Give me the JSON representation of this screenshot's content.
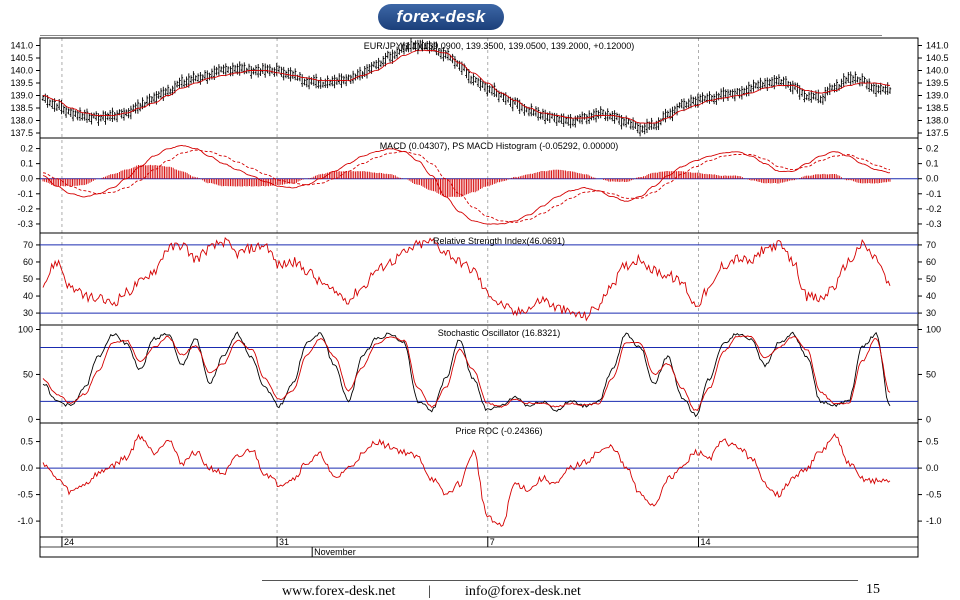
{
  "logo": {
    "text": "forex-desk"
  },
  "footer": {
    "website": "www.forex-desk.net",
    "separator": "|",
    "email": "info@forex-desk.net",
    "page_number": "15"
  },
  "colors": {
    "series": "#d40000",
    "signal": "#000000",
    "reference_line": "#1a2bb0",
    "grid": "#999999"
  },
  "chart_data": [
    {
      "type": "line",
      "title": "EUR/JPY(1:1)(139.0900, 139.3500, 139.0500, 139.2000, +0.12000)",
      "ylim": [
        137.3,
        141.3
      ],
      "yticks": [
        "141.0",
        "140.5",
        "140.0",
        "139.5",
        "139.0",
        "138.5",
        "138.0",
        "137.5"
      ],
      "series": [
        {
          "kind": "ohlc-bars",
          "values": [
            138.9,
            138.6,
            138.3,
            138.2,
            138.1,
            138.2,
            138.3,
            138.6,
            138.9,
            139.2,
            139.5,
            139.7,
            139.8,
            140.0,
            140.1,
            140.0,
            140.0,
            140.0,
            139.8,
            139.6,
            139.5,
            139.6,
            139.7,
            139.9,
            140.2,
            140.6,
            140.9,
            141.0,
            140.9,
            140.6,
            140.2,
            139.6,
            139.3,
            139.0,
            138.7,
            138.4,
            138.2,
            138.1,
            138.0,
            138.1,
            138.3,
            138.2,
            137.9,
            137.7,
            137.8,
            138.2,
            138.6,
            138.8,
            138.9,
            139.0,
            139.1,
            139.3,
            139.5,
            139.6,
            139.4,
            139.0,
            138.9,
            139.3,
            139.7,
            139.6,
            139.3,
            139.2
          ]
        },
        {
          "kind": "moving-average",
          "values": [
            139.0,
            138.8,
            138.5,
            138.3,
            138.2,
            138.2,
            138.3,
            138.5,
            138.7,
            139.0,
            139.3,
            139.5,
            139.7,
            139.8,
            139.9,
            140.0,
            140.0,
            139.9,
            139.8,
            139.7,
            139.6,
            139.6,
            139.6,
            139.8,
            140.0,
            140.3,
            140.6,
            140.8,
            140.8,
            140.7,
            140.3,
            139.9,
            139.5,
            139.1,
            138.8,
            138.5,
            138.3,
            138.2,
            138.1,
            138.1,
            138.2,
            138.2,
            138.1,
            137.9,
            137.9,
            138.1,
            138.4,
            138.6,
            138.8,
            138.9,
            139.0,
            139.1,
            139.3,
            139.4,
            139.4,
            139.2,
            139.1,
            139.2,
            139.4,
            139.5,
            139.5,
            139.4
          ]
        }
      ]
    },
    {
      "type": "line",
      "title": "MACD (0.04307), PS MACD Histogram (-0.05292, 0.00000)",
      "ylim": [
        -0.36,
        0.27
      ],
      "yticks": [
        "0.2",
        "0.1",
        "0.0",
        "-0.1",
        "-0.2",
        "-0.3"
      ],
      "reference_lines": [
        0.0
      ],
      "series": [
        {
          "kind": "macd",
          "values": [
            0.02,
            -0.05,
            -0.1,
            -0.12,
            -0.1,
            -0.06,
            0.0,
            0.08,
            0.15,
            0.2,
            0.22,
            0.2,
            0.15,
            0.1,
            0.06,
            0.02,
            -0.02,
            -0.05,
            -0.06,
            -0.04,
            0.0,
            0.05,
            0.1,
            0.15,
            0.18,
            0.2,
            0.18,
            0.12,
            0.02,
            -0.12,
            -0.22,
            -0.28,
            -0.3,
            -0.3,
            -0.28,
            -0.24,
            -0.18,
            -0.12,
            -0.08,
            -0.06,
            -0.08,
            -0.12,
            -0.15,
            -0.12,
            -0.05,
            0.02,
            0.08,
            0.12,
            0.15,
            0.17,
            0.18,
            0.15,
            0.1,
            0.05,
            0.05,
            0.1,
            0.15,
            0.18,
            0.15,
            0.1,
            0.06,
            0.04
          ]
        },
        {
          "kind": "signal-line",
          "values": [
            0.04,
            0.0,
            -0.05,
            -0.08,
            -0.1,
            -0.09,
            -0.06,
            -0.01,
            0.06,
            0.12,
            0.17,
            0.19,
            0.18,
            0.15,
            0.11,
            0.07,
            0.03,
            -0.01,
            -0.03,
            -0.04,
            -0.03,
            0.0,
            0.05,
            0.1,
            0.14,
            0.17,
            0.18,
            0.16,
            0.1,
            0.0,
            -0.1,
            -0.19,
            -0.25,
            -0.28,
            -0.29,
            -0.27,
            -0.23,
            -0.18,
            -0.13,
            -0.09,
            -0.08,
            -0.1,
            -0.13,
            -0.13,
            -0.09,
            -0.03,
            0.03,
            0.08,
            0.12,
            0.15,
            0.16,
            0.16,
            0.13,
            0.08,
            0.06,
            0.08,
            0.12,
            0.15,
            0.16,
            0.13,
            0.09,
            0.06
          ]
        },
        {
          "kind": "histogram",
          "values": [
            -0.02,
            -0.05,
            -0.05,
            -0.04,
            0.0,
            0.03,
            0.06,
            0.09,
            0.09,
            0.08,
            0.05,
            0.01,
            -0.03,
            -0.05,
            -0.05,
            -0.05,
            -0.05,
            -0.04,
            -0.03,
            0.0,
            0.03,
            0.05,
            0.05,
            0.05,
            0.04,
            0.03,
            0.0,
            -0.04,
            -0.08,
            -0.12,
            -0.12,
            -0.09,
            -0.05,
            -0.02,
            0.01,
            0.03,
            0.05,
            0.06,
            0.05,
            0.03,
            0.0,
            -0.02,
            -0.02,
            0.01,
            0.04,
            0.05,
            0.05,
            0.04,
            0.03,
            0.02,
            0.02,
            -0.01,
            -0.03,
            -0.03,
            -0.01,
            0.02,
            0.03,
            0.03,
            -0.01,
            -0.03,
            -0.03,
            -0.02
          ]
        }
      ]
    },
    {
      "type": "line",
      "title": "Relative Strength Index(46.0691)",
      "ylim": [
        23,
        77
      ],
      "yticks": [
        "70",
        "60",
        "50",
        "40",
        "30"
      ],
      "reference_lines": [
        70,
        30
      ],
      "series": [
        {
          "kind": "rsi",
          "values": [
            48,
            60,
            45,
            40,
            38,
            36,
            42,
            48,
            55,
            68,
            70,
            62,
            68,
            72,
            65,
            68,
            70,
            58,
            60,
            55,
            48,
            42,
            38,
            45,
            55,
            60,
            65,
            70,
            72,
            66,
            60,
            55,
            42,
            35,
            30,
            33,
            38,
            33,
            30,
            28,
            34,
            48,
            58,
            62,
            55,
            52,
            48,
            35,
            44,
            58,
            62,
            60,
            68,
            70,
            60,
            40,
            38,
            46,
            60,
            70,
            62,
            46
          ]
        }
      ]
    },
    {
      "type": "line",
      "title": "Stochastic Oscillator (16.8321)",
      "ylim": [
        -4,
        105
      ],
      "yticks": [
        "100",
        "50",
        "0"
      ],
      "reference_lines": [
        80,
        20
      ],
      "series": [
        {
          "kind": "%K",
          "values": [
            40,
            20,
            15,
            35,
            70,
            95,
            85,
            55,
            90,
            95,
            60,
            90,
            40,
            70,
            95,
            70,
            35,
            15,
            40,
            85,
            95,
            60,
            20,
            70,
            90,
            95,
            85,
            20,
            10,
            45,
            88,
            45,
            10,
            15,
            25,
            15,
            20,
            10,
            20,
            15,
            20,
            55,
            95,
            80,
            40,
            70,
            25,
            5,
            45,
            85,
            95,
            90,
            60,
            85,
            95,
            70,
            20,
            15,
            20,
            80,
            95,
            15
          ]
        },
        {
          "kind": "%D",
          "values": [
            45,
            28,
            18,
            28,
            55,
            85,
            88,
            65,
            80,
            92,
            72,
            82,
            52,
            62,
            88,
            78,
            45,
            22,
            32,
            72,
            90,
            70,
            32,
            58,
            84,
            92,
            88,
            35,
            14,
            35,
            78,
            55,
            18,
            14,
            22,
            18,
            18,
            14,
            18,
            16,
            18,
            45,
            85,
            85,
            50,
            62,
            35,
            10,
            35,
            75,
            92,
            92,
            68,
            80,
            92,
            78,
            30,
            18,
            18,
            65,
            90,
            30
          ]
        }
      ]
    },
    {
      "type": "line",
      "title": "Price ROC (-0.24366)",
      "ylim": [
        -1.3,
        0.85
      ],
      "yticks": [
        "0.5",
        "0.0",
        "-0.5",
        "-1.0"
      ],
      "reference_lines": [
        0.0
      ],
      "series": [
        {
          "kind": "roc",
          "values": [
            0.1,
            -0.2,
            -0.45,
            -0.3,
            -0.1,
            0.05,
            0.2,
            0.6,
            0.3,
            0.55,
            0.1,
            0.3,
            0.0,
            -0.1,
            0.2,
            0.35,
            -0.1,
            -0.3,
            -0.2,
            0.1,
            0.25,
            -0.2,
            0.0,
            0.25,
            0.5,
            0.4,
            0.3,
            0.2,
            -0.2,
            -0.5,
            -0.3,
            0.3,
            -0.9,
            -1.1,
            -0.3,
            -0.4,
            -0.2,
            -0.3,
            0.0,
            0.1,
            0.3,
            0.4,
            0.0,
            -0.5,
            -0.7,
            -0.2,
            0.0,
            0.3,
            0.2,
            0.5,
            0.4,
            0.2,
            -0.3,
            -0.5,
            -0.2,
            0.0,
            0.3,
            0.6,
            0.1,
            -0.2,
            -0.25,
            -0.24
          ]
        }
      ]
    }
  ],
  "x_axis": {
    "labels": [
      {
        "text": "24",
        "pos": 0.025
      },
      {
        "text": "31",
        "pos": 0.27
      },
      {
        "text": "7",
        "pos": 0.51
      },
      {
        "text": "14",
        "pos": 0.75
      }
    ],
    "sub_labels": [
      {
        "text": "November",
        "pos": 0.31
      }
    ]
  }
}
